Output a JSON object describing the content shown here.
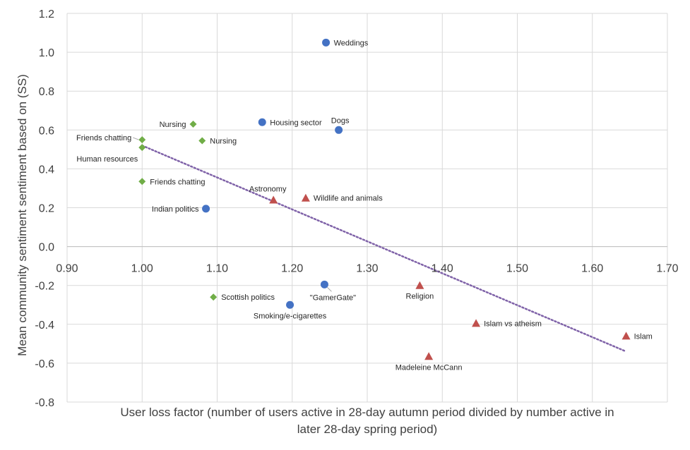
{
  "chart_data": {
    "type": "scatter",
    "title": "",
    "xlabel_lines": [
      "User loss factor (number of users active in 28-day autumn period divided by number active in",
      "later 28-day spring period)"
    ],
    "ylabel": "Mean community sentiment sentiment based on (SS)",
    "xlim": [
      0.9,
      1.7
    ],
    "ylim": [
      -0.8,
      1.2
    ],
    "x_ticks": [
      "0.90",
      "1.00",
      "1.10",
      "1.20",
      "1.30",
      "1.40",
      "1.50",
      "1.60",
      "1.70"
    ],
    "y_ticks": [
      "1.2",
      "1.0",
      "0.8",
      "0.6",
      "0.4",
      "0.2",
      "0.0",
      "-0.2",
      "-0.4",
      "-0.6",
      "-0.8"
    ],
    "grid": true,
    "colors": {
      "circle": "#4472C4",
      "diamond": "#70AD47",
      "triangle": "#C0504D",
      "trend": "#7F62A8",
      "grid": "#D9D9D9"
    },
    "series": [
      {
        "name": "blue-circles",
        "marker": "circle",
        "points": [
          {
            "x": 1.245,
            "y": 1.05,
            "label": "Weddings",
            "anchor": "right"
          },
          {
            "x": 1.16,
            "y": 0.64,
            "label": "Housing sector",
            "anchor": "right"
          },
          {
            "x": 1.262,
            "y": 0.6,
            "label": "Dogs",
            "anchor": "above"
          },
          {
            "x": 1.085,
            "y": 0.195,
            "label": "Indian politics",
            "anchor": "left"
          },
          {
            "x": 1.243,
            "y": -0.195,
            "label": "\"GamerGate\"",
            "anchor": "below-right"
          },
          {
            "x": 1.197,
            "y": -0.3,
            "label": "Smoking/e-cigarettes",
            "anchor": "below"
          }
        ]
      },
      {
        "name": "green-diamonds",
        "marker": "diamond",
        "points": [
          {
            "x": 1.068,
            "y": 0.63,
            "label": "Nursing",
            "anchor": "left"
          },
          {
            "x": 1.08,
            "y": 0.545,
            "label": "Nursing",
            "anchor": "right"
          },
          {
            "x": 1.0,
            "y": 0.55,
            "label": "Friends chatting",
            "anchor": "left-leader"
          },
          {
            "x": 1.0,
            "y": 0.51,
            "label": "Human resources",
            "anchor": "below-left"
          },
          {
            "x": 1.0,
            "y": 0.335,
            "label": "Friends chatting",
            "anchor": "right"
          },
          {
            "x": 1.095,
            "y": -0.26,
            "label": "Scottish politics",
            "anchor": "right"
          }
        ]
      },
      {
        "name": "red-triangles",
        "marker": "triangle",
        "points": [
          {
            "x": 1.175,
            "y": 0.24,
            "label": "Astronomy",
            "anchor": "above-left"
          },
          {
            "x": 1.218,
            "y": 0.25,
            "label": "Wildlife and animals",
            "anchor": "right"
          },
          {
            "x": 1.37,
            "y": -0.2,
            "label": "Religion",
            "anchor": "below"
          },
          {
            "x": 1.445,
            "y": -0.395,
            "label": "Islam vs atheism",
            "anchor": "right"
          },
          {
            "x": 1.382,
            "y": -0.565,
            "label": "Madeleine McCann",
            "anchor": "below"
          },
          {
            "x": 1.645,
            "y": -0.46,
            "label": "Islam",
            "anchor": "right"
          }
        ]
      }
    ],
    "trendline": {
      "x1": 1.0,
      "y1": 0.52,
      "x2": 1.645,
      "y2": -0.54
    }
  }
}
